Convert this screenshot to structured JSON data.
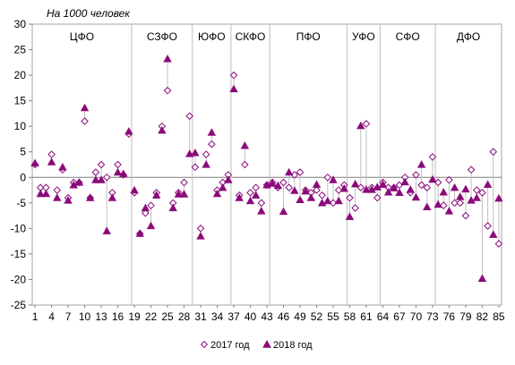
{
  "chart_data": {
    "type": "scatter",
    "y_title": "На 1000 человек",
    "ylim": [
      -25,
      30
    ],
    "y_ticks": [
      -25,
      -20,
      -15,
      -10,
      -5,
      0,
      5,
      10,
      15,
      20,
      25,
      30
    ],
    "x_tick_labels": [
      "1",
      "4",
      "7",
      "10",
      "13",
      "16",
      "19",
      "22",
      "25",
      "28",
      "31",
      "34",
      "37",
      "40",
      "43",
      "46",
      "49",
      "52",
      "55",
      "58",
      "61",
      "64",
      "67",
      "70",
      "73",
      "76",
      "79",
      "82",
      "85"
    ],
    "regions": [
      {
        "label": "ЦФО",
        "start": 1,
        "end": 18
      },
      {
        "label": "СЗФО",
        "start": 19,
        "end": 29
      },
      {
        "label": "ЮФО",
        "start": 30,
        "end": 36
      },
      {
        "label": "СКФО",
        "start": 37,
        "end": 43
      },
      {
        "label": "ПФО",
        "start": 44,
        "end": 57
      },
      {
        "label": "УФО",
        "start": 58,
        "end": 63
      },
      {
        "label": "СФО",
        "start": 64,
        "end": 73
      },
      {
        "label": "ДФО",
        "start": 74,
        "end": 85
      }
    ],
    "colors": {
      "series": "#8b0a7a",
      "grid_line": "#c0c0c0",
      "divider": "#bfbfbf"
    },
    "series": [
      {
        "name": "2017 год",
        "marker": "diamond-open",
        "values": [
          2.5,
          -2,
          -2,
          4.5,
          -2.5,
          1.5,
          -4,
          -1,
          -1,
          11,
          -4,
          1,
          2.5,
          0,
          -3,
          2.5,
          0.5,
          8.5,
          -3,
          -11,
          -7,
          -5.5,
          -3,
          10,
          17,
          -5,
          -3,
          -1,
          12,
          2,
          -10,
          4.5,
          6.5,
          -2.5,
          -1,
          0.5,
          20,
          -3.5,
          2.5,
          -3,
          -2,
          -5,
          -1.5,
          -1,
          -2,
          -1,
          -2,
          0.5,
          1,
          -2.5,
          -3,
          -2.5,
          -3.5,
          0,
          -5,
          -2.5,
          -1.5,
          -4,
          -6,
          -2,
          10.5,
          -2,
          -4,
          -1,
          -2,
          -2,
          -1.5,
          0,
          -3,
          0.5,
          -1.5,
          -2,
          4,
          -1,
          -5.5,
          -0.5,
          -5,
          -5,
          -7.5,
          1.5,
          -2.5,
          -3,
          -9.5,
          5,
          -13
        ]
      },
      {
        "name": "2018 год",
        "marker": "triangle-filled",
        "values": [
          2.8,
          -3.2,
          -3.2,
          3,
          -4,
          2,
          -4.5,
          -1.5,
          -1,
          13.6,
          -4,
          -0.5,
          -0.5,
          -10.5,
          -4,
          1,
          0.7,
          9,
          -2.5,
          -11,
          -6,
          -9.5,
          -3.5,
          9.2,
          23.2,
          -6,
          -3.3,
          -3.3,
          4.6,
          4.8,
          -11.5,
          2.5,
          8.8,
          -3.2,
          -2,
          -0.5,
          17.3,
          -4,
          6.2,
          -4.6,
          -3.5,
          -6.6,
          -1.5,
          -1.2,
          -1.6,
          -6.7,
          1,
          -2.6,
          -4.4,
          -2.7,
          -4,
          -1.4,
          -5,
          -4.6,
          -0.5,
          -4.6,
          -2.2,
          -7.7,
          -1.3,
          10.1,
          -2.4,
          -2.4,
          -1.9,
          -1.4,
          -2.9,
          -2.1,
          -3,
          -0.9,
          -2.4,
          -3.9,
          2.5,
          -5.8,
          -0.4,
          -5.3,
          -2.9,
          -6.6,
          -2,
          -3.8,
          -2.3,
          -4.5,
          -4,
          -19.8,
          -1.4,
          -11.2,
          -4.1
        ]
      }
    ],
    "legend": {
      "position": "bottom-center",
      "items": [
        "2017 год",
        "2018 год"
      ]
    }
  }
}
